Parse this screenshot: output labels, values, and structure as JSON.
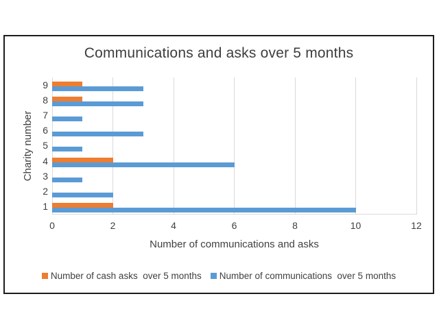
{
  "chart_data": {
    "type": "bar",
    "orientation": "horizontal",
    "title": "Communications and asks over 5 months",
    "xlabel": "Number of communications and asks",
    "ylabel": "Charity number",
    "categories": [
      "1",
      "2",
      "3",
      "4",
      "5",
      "6",
      "7",
      "8",
      "9"
    ],
    "series": [
      {
        "name": "Number of cash asks  over 5 months",
        "color": "#ED7D31",
        "values": [
          2,
          0,
          0,
          2,
          0,
          0,
          0,
          1,
          1
        ]
      },
      {
        "name": "Number of communications  over 5 months",
        "color": "#5B9BD5",
        "values": [
          10,
          2,
          1,
          6,
          1,
          3,
          1,
          3,
          3
        ]
      }
    ],
    "xlim": [
      0,
      12
    ],
    "xticks": [
      0,
      2,
      4,
      6,
      8,
      10,
      12
    ],
    "grid": "vertical-gridlines",
    "legend_position": "bottom"
  },
  "colors": {
    "grid": "#D9D9D9",
    "axis_line": "#D9D9D9",
    "text": "#3F3F3F",
    "frame_border": "#1B1B1B",
    "background": "#FFFFFF"
  }
}
